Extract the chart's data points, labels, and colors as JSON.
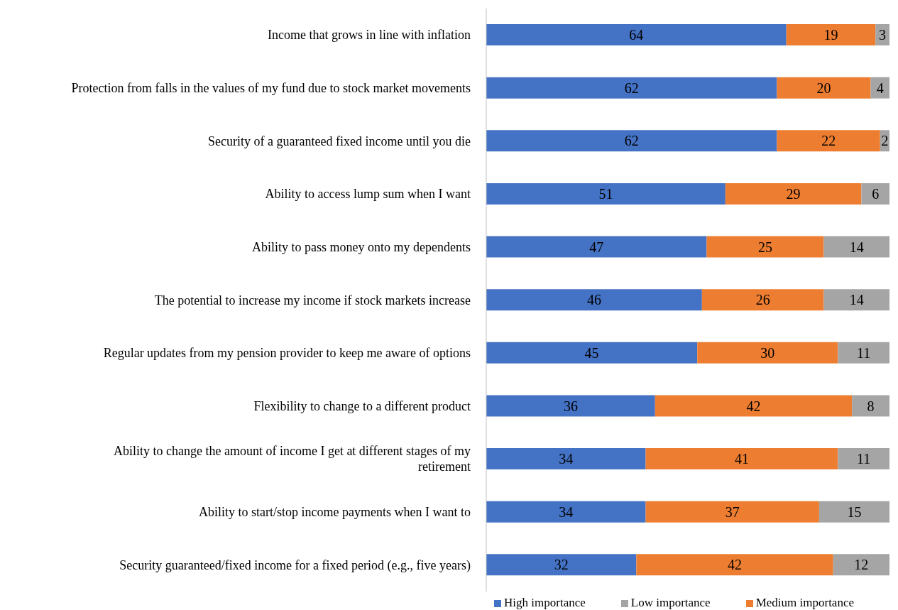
{
  "chart_data": {
    "type": "bar",
    "orientation": "horizontal",
    "stacked": true,
    "data_labels": true,
    "legend": "bottom",
    "grid": false,
    "tick_labels": "y",
    "xlim": [
      0,
      86
    ],
    "categories": [
      "Income that grows in line with inflation",
      "Protection from falls in the values of my fund due to stock market movements",
      "Security of a guaranteed fixed income until you die",
      "Ability to access lump sum when I want",
      "Ability to pass money onto my dependents",
      "The potential to increase my income if stock markets increase",
      "Regular updates from my pension provider to keep me aware of options",
      "Flexibility to change to a different product",
      "Ability to change the amount of income I get at different stages of my retirement",
      "Ability to start/stop income payments when I want to",
      "Security guaranteed/fixed income for a fixed period (e.g., five years)"
    ],
    "series": [
      {
        "name": "High importance",
        "color": "#4472c4",
        "values": [
          64,
          62,
          62,
          51,
          47,
          46,
          45,
          36,
          34,
          34,
          32
        ]
      },
      {
        "name": "Medium importance",
        "color": "#ed7d31",
        "values": [
          19,
          20,
          22,
          29,
          25,
          26,
          30,
          42,
          41,
          37,
          42
        ]
      },
      {
        "name": "Low importance",
        "color": "#a5a5a5",
        "values": [
          3,
          4,
          2,
          6,
          14,
          14,
          11,
          8,
          11,
          15,
          12
        ]
      }
    ]
  }
}
